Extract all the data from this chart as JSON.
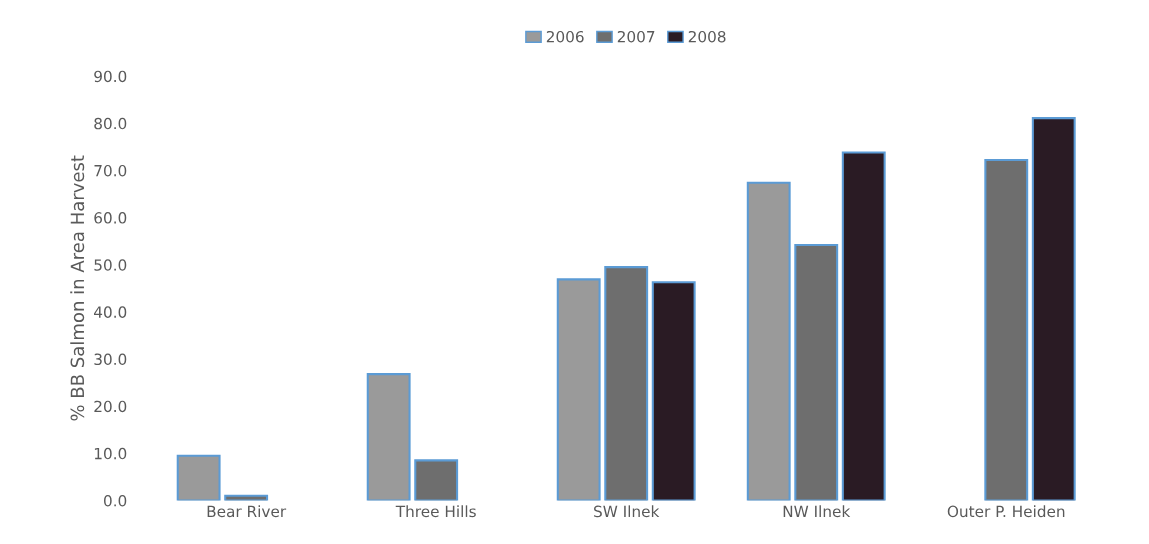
{
  "chart_data": {
    "type": "bar",
    "ylabel": "% BB Salmon in Area Harvest",
    "categories": [
      "Bear River",
      "Three Hills",
      "SW Ilnek",
      "NW Ilnek",
      "Outer P. Heiden"
    ],
    "series": [
      {
        "name": "2006",
        "color": "#9a9a9a",
        "values": [
          9.5,
          26.8,
          46.9,
          67.4,
          null
        ]
      },
      {
        "name": "2007",
        "color": "#6e6e6e",
        "values": [
          1.0,
          8.5,
          49.5,
          54.2,
          72.2
        ]
      },
      {
        "name": "2008",
        "color": "#2a1b24",
        "values": [
          null,
          null,
          46.3,
          73.8,
          81.1
        ]
      }
    ],
    "ylim": [
      0,
      90
    ],
    "yticks": [
      {
        "value": 0,
        "label": "0.0"
      },
      {
        "value": 10,
        "label": "10.0"
      },
      {
        "value": 20,
        "label": "20.0"
      },
      {
        "value": 30,
        "label": "30.0"
      },
      {
        "value": 40,
        "label": "40.0"
      },
      {
        "value": 50,
        "label": "50.0"
      },
      {
        "value": 60,
        "label": "60.0"
      },
      {
        "value": 70,
        "label": "70.0"
      },
      {
        "value": 80,
        "label": "80.0"
      },
      {
        "value": 90,
        "label": "90.0"
      }
    ],
    "grid": false,
    "legend": "top"
  }
}
